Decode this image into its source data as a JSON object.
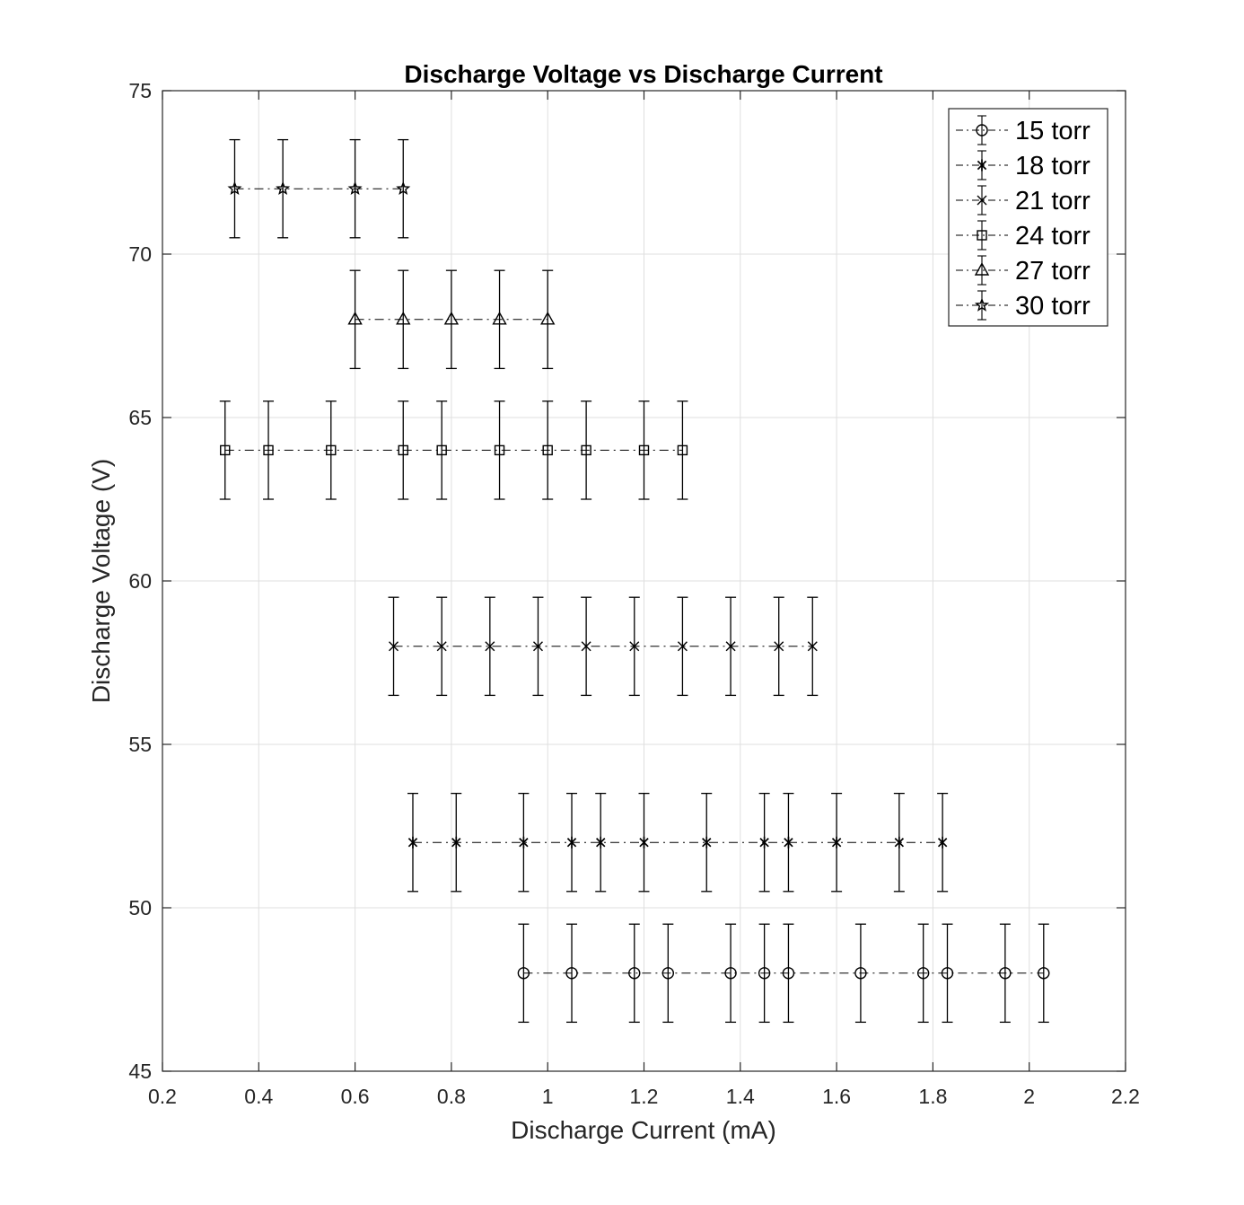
{
  "chart_data": {
    "type": "scatter",
    "title": "Discharge Voltage vs Discharge Current",
    "xlabel": "Discharge Current (mA)",
    "ylabel": "Discharge Voltage (V)",
    "xlim": [
      0.2,
      2.2
    ],
    "ylim": [
      45,
      75
    ],
    "xticks": [
      0.2,
      0.4,
      0.6,
      0.8,
      1,
      1.2,
      1.4,
      1.6,
      1.8,
      2,
      2.2
    ],
    "yticks": [
      45,
      50,
      55,
      60,
      65,
      70,
      75
    ],
    "grid": true,
    "legend_position": "top-right",
    "line_style": "dash-dot",
    "color": "#000000",
    "error_bar": 1.5,
    "series": [
      {
        "name": "15 torr",
        "marker": "circle",
        "x": [
          0.95,
          1.05,
          1.18,
          1.25,
          1.38,
          1.45,
          1.5,
          1.65,
          1.78,
          1.83,
          1.95,
          2.03
        ],
        "y": [
          48,
          48,
          48,
          48,
          48,
          48,
          48,
          48,
          48,
          48,
          48,
          48
        ]
      },
      {
        "name": "18 torr",
        "marker": "asterisk",
        "x": [
          0.72,
          0.81,
          0.95,
          1.05,
          1.11,
          1.2,
          1.33,
          1.45,
          1.5,
          1.6,
          1.73,
          1.82
        ],
        "y": [
          52,
          52,
          52,
          52,
          52,
          52,
          52,
          52,
          52,
          52,
          52,
          52
        ]
      },
      {
        "name": "21 torr",
        "marker": "cross",
        "x": [
          0.68,
          0.78,
          0.88,
          0.98,
          1.08,
          1.18,
          1.28,
          1.38,
          1.48,
          1.55
        ],
        "y": [
          58,
          58,
          58,
          58,
          58,
          58,
          58,
          58,
          58,
          58
        ]
      },
      {
        "name": "24 torr",
        "marker": "square",
        "x": [
          0.33,
          0.42,
          0.55,
          0.7,
          0.78,
          0.9,
          1.0,
          1.08,
          1.2,
          1.28
        ],
        "y": [
          64,
          64,
          64,
          64,
          64,
          64,
          64,
          64,
          64,
          64
        ]
      },
      {
        "name": "27 torr",
        "marker": "triangle",
        "x": [
          0.6,
          0.7,
          0.8,
          0.9,
          1.0
        ],
        "y": [
          68,
          68,
          68,
          68,
          68
        ]
      },
      {
        "name": "30 torr",
        "marker": "star",
        "x": [
          0.35,
          0.45,
          0.6,
          0.7
        ],
        "y": [
          72,
          72,
          72,
          72
        ]
      }
    ]
  }
}
